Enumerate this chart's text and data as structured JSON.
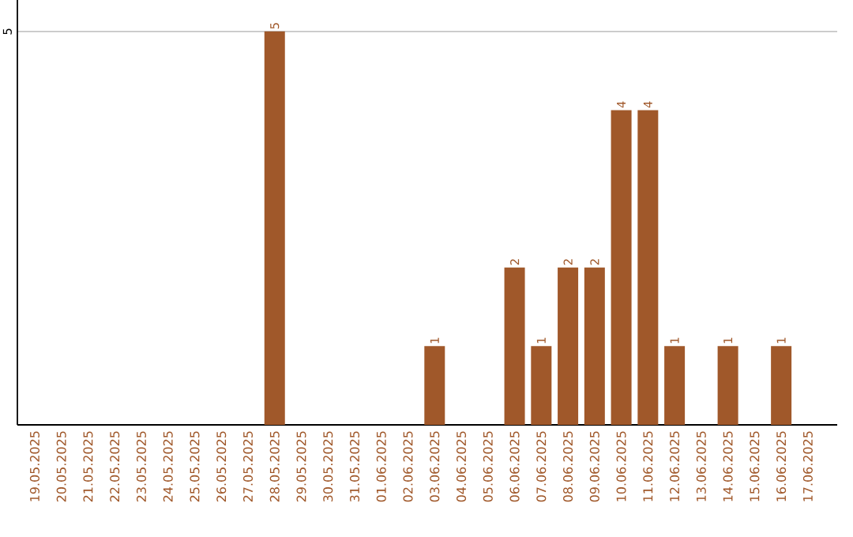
{
  "chart_data": {
    "type": "bar",
    "categories": [
      "19.05.2025",
      "20.05.2025",
      "21.05.2025",
      "22.05.2025",
      "23.05.2025",
      "24.05.2025",
      "25.05.2025",
      "26.05.2025",
      "27.05.2025",
      "28.05.2025",
      "29.05.2025",
      "30.05.2025",
      "31.05.2025",
      "01.06.2025",
      "02.06.2025",
      "03.06.2025",
      "04.06.2025",
      "05.06.2025",
      "06.06.2025",
      "07.06.2025",
      "08.06.2025",
      "09.06.2025",
      "10.06.2025",
      "11.06.2025",
      "12.06.2025",
      "13.06.2025",
      "14.06.2025",
      "15.06.2025",
      "16.06.2025",
      "17.06.2025"
    ],
    "values": [
      0,
      0,
      0,
      0,
      0,
      0,
      0,
      0,
      0,
      5,
      0,
      0,
      0,
      0,
      0,
      1,
      0,
      0,
      2,
      1,
      2,
      2,
      4,
      4,
      1,
      0,
      1,
      0,
      1,
      0
    ],
    "value_labels": [
      null,
      null,
      null,
      null,
      null,
      null,
      null,
      null,
      null,
      "5",
      null,
      null,
      null,
      null,
      null,
      "1",
      null,
      null,
      "2",
      "1",
      "2",
      "2",
      "4",
      "4",
      "1",
      null,
      "1",
      null,
      "1",
      null
    ],
    "color": "#a0582a",
    "ylim": [
      0,
      5.4
    ],
    "yticks": [
      5
    ],
    "grid": "y"
  }
}
